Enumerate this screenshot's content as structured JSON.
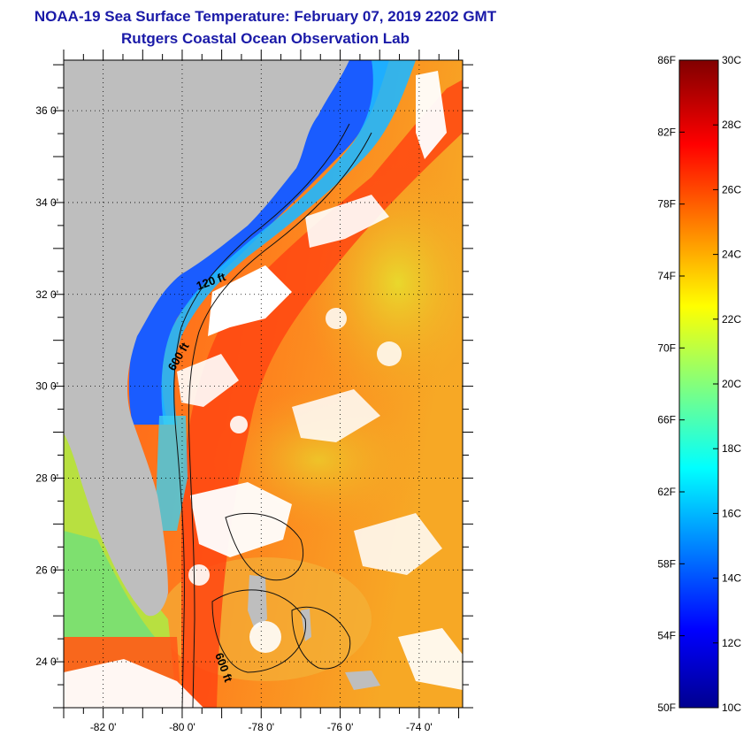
{
  "header": {
    "title": "NOAA-19 Sea Surface Temperature:  February 07, 2019 2202 GMT",
    "subtitle": "Rutgers Coastal Ocean Observation Lab"
  },
  "map": {
    "lon_range": [
      -83.0,
      -72.9
    ],
    "lat_range": [
      23.0,
      37.1
    ],
    "lon_ticks": [
      {
        "value": -82,
        "label": "-82 0'"
      },
      {
        "value": -80,
        "label": "-80 0'"
      },
      {
        "value": -78,
        "label": "-78 0'"
      },
      {
        "value": -76,
        "label": "-76 0'"
      },
      {
        "value": -74,
        "label": "-74 0'"
      }
    ],
    "lat_ticks": [
      {
        "value": 36,
        "label": "36 0'"
      },
      {
        "value": 34,
        "label": "34 0'"
      },
      {
        "value": 32,
        "label": "32 0'"
      },
      {
        "value": 30,
        "label": "30 0'"
      },
      {
        "value": 28,
        "label": "28 0'"
      },
      {
        "value": 26,
        "label": "26 0'"
      },
      {
        "value": 24,
        "label": "24 0'"
      }
    ],
    "contour_labels": [
      "120 ft",
      "600 ft",
      "600 ft"
    ],
    "colors": {
      "land": "#bebebe",
      "cloud": "#ffffff",
      "gulfstream": "#ff4a14",
      "warm": "#ff8a1e",
      "shelf_cold": "#1a5cff",
      "shelf_mid": "#2fd0ff",
      "florida_shelf": "#a8e44a"
    }
  },
  "colorbar": {
    "fahrenheit": [
      "86F",
      "82F",
      "78F",
      "74F",
      "70F",
      "66F",
      "62F",
      "58F",
      "54F",
      "50F"
    ],
    "celsius": [
      "30C",
      "28C",
      "26C",
      "24C",
      "22C",
      "20C",
      "18C",
      "16C",
      "14C",
      "12C",
      "10C"
    ],
    "c_range": [
      10,
      30
    ]
  }
}
